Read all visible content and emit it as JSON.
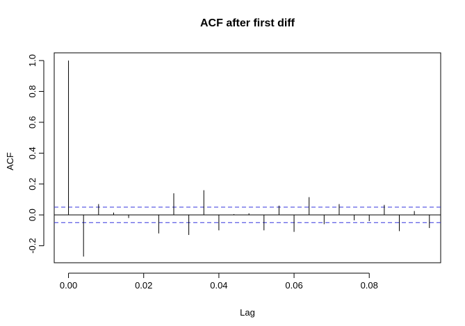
{
  "chart_data": {
    "type": "bar",
    "title": "ACF after first diff",
    "xlabel": "Lag",
    "ylabel": "ACF",
    "xlim": [
      -0.0038,
      0.099
    ],
    "ylim": [
      -0.31,
      1.05
    ],
    "x_ticks": [
      0.0,
      0.02,
      0.04,
      0.06,
      0.08
    ],
    "x_tick_labels": [
      "0.00",
      "0.02",
      "0.04",
      "0.06",
      "0.08"
    ],
    "y_ticks": [
      -0.2,
      0.0,
      0.2,
      0.4,
      0.6,
      0.8,
      1.0
    ],
    "y_tick_labels": [
      "-0.2",
      "0.0",
      "0.2",
      "0.4",
      "0.6",
      "0.8",
      "1.0"
    ],
    "confidence_bound": 0.05,
    "colors": {
      "bound": "#3333dd",
      "bars": "#000000"
    },
    "lags": [
      0.0,
      0.004,
      0.008,
      0.012,
      0.016,
      0.02,
      0.024,
      0.028,
      0.032,
      0.036,
      0.04,
      0.044,
      0.048,
      0.052,
      0.056,
      0.06,
      0.064,
      0.068,
      0.072,
      0.076,
      0.08,
      0.084,
      0.088,
      0.092,
      0.096
    ],
    "values": [
      1.0,
      -0.27,
      0.07,
      0.015,
      -0.02,
      0.0,
      -0.12,
      0.14,
      -0.13,
      0.16,
      -0.1,
      0.005,
      0.01,
      -0.1,
      0.06,
      -0.11,
      0.115,
      -0.06,
      0.07,
      -0.035,
      -0.04,
      0.065,
      -0.105,
      0.025,
      -0.085
    ]
  }
}
